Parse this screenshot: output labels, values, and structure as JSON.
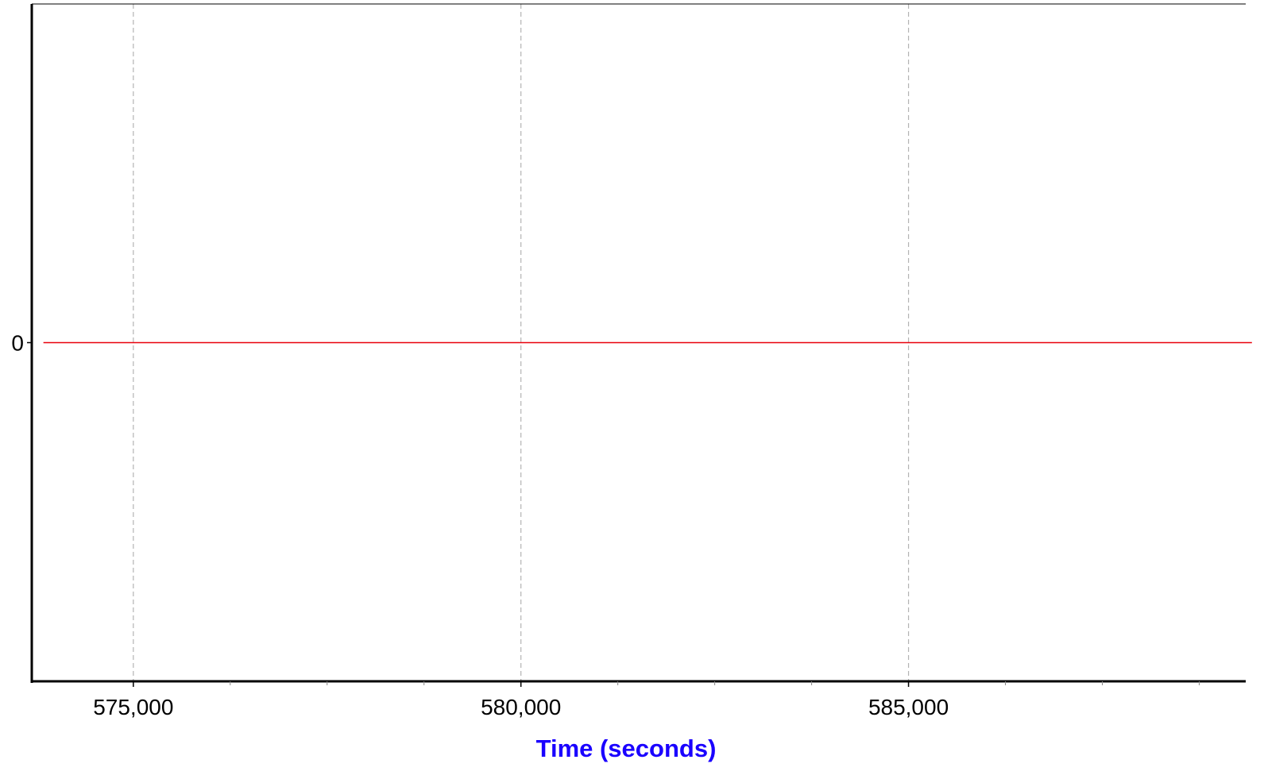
{
  "chart_data": {
    "type": "line",
    "title": "",
    "xlabel": "Time (seconds)",
    "ylabel": "",
    "xlim": [
      573690,
      589350
    ],
    "ylim": [
      -1,
      1
    ],
    "x_ticks": [
      575000,
      580000,
      585000
    ],
    "x_tick_labels": [
      "575,000",
      "580,000",
      "585,000"
    ],
    "x_minor_ticks": [
      576250,
      577500,
      578750,
      581250,
      582500,
      583750,
      586250,
      587500,
      588750
    ],
    "y_ticks": [
      0
    ],
    "y_tick_labels": [
      "0"
    ],
    "grid": "vertical dashed at major x ticks",
    "legend": "none",
    "series": [
      {
        "color": "#e8000b",
        "x": [
          573840,
          589430
        ],
        "y": [
          0,
          0
        ]
      }
    ]
  },
  "colors": {
    "axis": "#000000",
    "grid": "#b3b3b3",
    "xlabel": "#1a00ff",
    "series": "#e8000b"
  }
}
